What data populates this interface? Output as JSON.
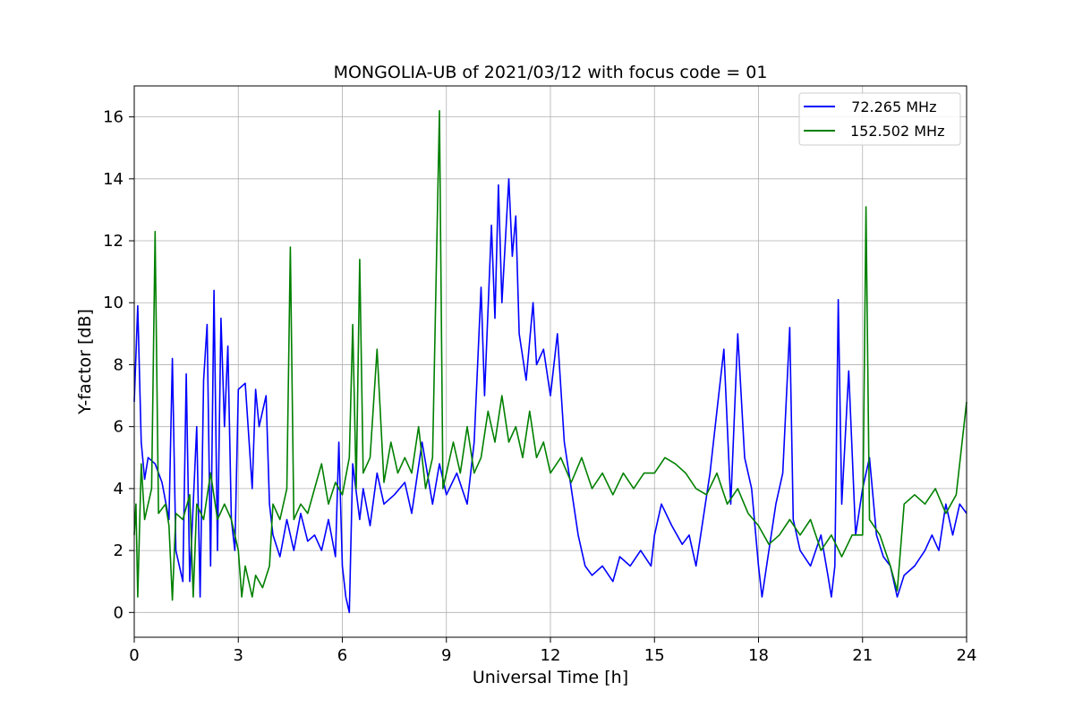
{
  "chart_data": {
    "type": "line",
    "title": "MONGOLIA-UB of 2021/03/12 with focus code = 01",
    "xlabel": "Universal Time [h]",
    "ylabel": "Y-factor [dB]",
    "xlim": [
      0,
      24
    ],
    "ylim": [
      -0.8,
      17
    ],
    "xticks": [
      0,
      3,
      6,
      9,
      12,
      15,
      18,
      21,
      24
    ],
    "yticks": [
      0,
      2,
      4,
      6,
      8,
      10,
      12,
      14,
      16
    ],
    "grid": true,
    "legend_position": "top-right",
    "series": [
      {
        "name": "72.265 MHz",
        "legend_label": "  72.265 MHz",
        "color": "#0000ff",
        "points": [
          [
            0.0,
            6.8
          ],
          [
            0.1,
            9.9
          ],
          [
            0.2,
            5.5
          ],
          [
            0.3,
            4.3
          ],
          [
            0.4,
            5.0
          ],
          [
            0.6,
            4.8
          ],
          [
            0.8,
            4.2
          ],
          [
            1.0,
            3.0
          ],
          [
            1.1,
            8.2
          ],
          [
            1.2,
            2.0
          ],
          [
            1.4,
            1.0
          ],
          [
            1.5,
            7.7
          ],
          [
            1.6,
            1.0
          ],
          [
            1.8,
            6.0
          ],
          [
            1.9,
            0.5
          ],
          [
            2.0,
            7.5
          ],
          [
            2.1,
            9.3
          ],
          [
            2.2,
            1.5
          ],
          [
            2.3,
            10.4
          ],
          [
            2.4,
            2.0
          ],
          [
            2.5,
            9.5
          ],
          [
            2.6,
            6.0
          ],
          [
            2.7,
            8.6
          ],
          [
            2.8,
            3.0
          ],
          [
            2.9,
            2.0
          ],
          [
            3.0,
            7.2
          ],
          [
            3.2,
            7.4
          ],
          [
            3.4,
            4.0
          ],
          [
            3.5,
            7.2
          ],
          [
            3.6,
            6.0
          ],
          [
            3.8,
            7.0
          ],
          [
            3.9,
            3.5
          ],
          [
            4.0,
            2.5
          ],
          [
            4.2,
            1.8
          ],
          [
            4.4,
            3.0
          ],
          [
            4.6,
            2.0
          ],
          [
            4.8,
            3.2
          ],
          [
            5.0,
            2.3
          ],
          [
            5.2,
            2.5
          ],
          [
            5.4,
            2.0
          ],
          [
            5.6,
            3.0
          ],
          [
            5.8,
            1.8
          ],
          [
            5.9,
            5.5
          ],
          [
            6.0,
            1.5
          ],
          [
            6.1,
            0.5
          ],
          [
            6.2,
            0.0
          ],
          [
            6.3,
            4.8
          ],
          [
            6.5,
            3.0
          ],
          [
            6.6,
            4.0
          ],
          [
            6.8,
            2.8
          ],
          [
            7.0,
            4.5
          ],
          [
            7.2,
            3.5
          ],
          [
            7.5,
            3.8
          ],
          [
            7.8,
            4.2
          ],
          [
            8.0,
            3.2
          ],
          [
            8.3,
            5.5
          ],
          [
            8.6,
            3.5
          ],
          [
            8.8,
            4.8
          ],
          [
            9.0,
            3.8
          ],
          [
            9.3,
            4.5
          ],
          [
            9.6,
            3.5
          ],
          [
            9.8,
            5.5
          ],
          [
            10.0,
            10.5
          ],
          [
            10.1,
            7.0
          ],
          [
            10.3,
            12.5
          ],
          [
            10.4,
            9.5
          ],
          [
            10.5,
            13.8
          ],
          [
            10.6,
            10.0
          ],
          [
            10.8,
            14.0
          ],
          [
            10.9,
            11.5
          ],
          [
            11.0,
            12.8
          ],
          [
            11.1,
            9.0
          ],
          [
            11.3,
            7.5
          ],
          [
            11.5,
            10.0
          ],
          [
            11.6,
            8.0
          ],
          [
            11.8,
            8.5
          ],
          [
            12.0,
            7.0
          ],
          [
            12.2,
            9.0
          ],
          [
            12.4,
            5.5
          ],
          [
            12.6,
            4.0
          ],
          [
            12.8,
            2.5
          ],
          [
            13.0,
            1.5
          ],
          [
            13.2,
            1.2
          ],
          [
            13.5,
            1.5
          ],
          [
            13.8,
            1.0
          ],
          [
            14.0,
            1.8
          ],
          [
            14.3,
            1.5
          ],
          [
            14.6,
            2.0
          ],
          [
            14.9,
            1.5
          ],
          [
            15.0,
            2.5
          ],
          [
            15.2,
            3.5
          ],
          [
            15.5,
            2.8
          ],
          [
            15.8,
            2.2
          ],
          [
            16.0,
            2.5
          ],
          [
            16.2,
            1.5
          ],
          [
            16.4,
            3.0
          ],
          [
            16.6,
            4.5
          ],
          [
            16.8,
            6.5
          ],
          [
            17.0,
            8.5
          ],
          [
            17.2,
            3.5
          ],
          [
            17.4,
            9.0
          ],
          [
            17.6,
            5.0
          ],
          [
            17.8,
            4.0
          ],
          [
            18.0,
            1.5
          ],
          [
            18.1,
            0.5
          ],
          [
            18.3,
            2.0
          ],
          [
            18.5,
            3.5
          ],
          [
            18.7,
            4.5
          ],
          [
            18.9,
            9.2
          ],
          [
            19.0,
            3.0
          ],
          [
            19.2,
            2.0
          ],
          [
            19.5,
            1.5
          ],
          [
            19.8,
            2.5
          ],
          [
            20.0,
            1.2
          ],
          [
            20.1,
            0.5
          ],
          [
            20.2,
            1.5
          ],
          [
            20.3,
            10.1
          ],
          [
            20.4,
            3.5
          ],
          [
            20.6,
            7.8
          ],
          [
            20.8,
            2.5
          ],
          [
            21.0,
            4.0
          ],
          [
            21.2,
            5.0
          ],
          [
            21.4,
            2.5
          ],
          [
            21.6,
            1.8
          ],
          [
            21.8,
            1.5
          ],
          [
            22.0,
            0.5
          ],
          [
            22.2,
            1.2
          ],
          [
            22.5,
            1.5
          ],
          [
            22.8,
            2.0
          ],
          [
            23.0,
            2.5
          ],
          [
            23.2,
            2.0
          ],
          [
            23.4,
            3.5
          ],
          [
            23.6,
            2.5
          ],
          [
            23.8,
            3.5
          ],
          [
            24.0,
            3.2
          ]
        ]
      },
      {
        "name": "152.502 MHz",
        "legend_label": "152.502 MHz",
        "color": "#008000",
        "points": [
          [
            0.0,
            2.5
          ],
          [
            0.05,
            3.5
          ],
          [
            0.1,
            0.5
          ],
          [
            0.2,
            4.8
          ],
          [
            0.3,
            3.0
          ],
          [
            0.5,
            4.0
          ],
          [
            0.6,
            12.3
          ],
          [
            0.7,
            3.2
          ],
          [
            0.9,
            3.5
          ],
          [
            1.0,
            2.8
          ],
          [
            1.1,
            0.4
          ],
          [
            1.2,
            3.2
          ],
          [
            1.4,
            3.0
          ],
          [
            1.6,
            3.8
          ],
          [
            1.7,
            0.5
          ],
          [
            1.8,
            3.5
          ],
          [
            2.0,
            3.0
          ],
          [
            2.2,
            4.5
          ],
          [
            2.4,
            3.0
          ],
          [
            2.6,
            3.5
          ],
          [
            2.8,
            3.0
          ],
          [
            3.0,
            2.0
          ],
          [
            3.1,
            0.5
          ],
          [
            3.2,
            1.5
          ],
          [
            3.4,
            0.5
          ],
          [
            3.5,
            1.2
          ],
          [
            3.7,
            0.8
          ],
          [
            3.9,
            1.5
          ],
          [
            4.0,
            3.5
          ],
          [
            4.2,
            3.0
          ],
          [
            4.4,
            4.0
          ],
          [
            4.5,
            11.8
          ],
          [
            4.6,
            3.0
          ],
          [
            4.8,
            3.5
          ],
          [
            5.0,
            3.2
          ],
          [
            5.2,
            4.0
          ],
          [
            5.4,
            4.8
          ],
          [
            5.6,
            3.5
          ],
          [
            5.8,
            4.2
          ],
          [
            6.0,
            3.8
          ],
          [
            6.2,
            5.0
          ],
          [
            6.3,
            9.3
          ],
          [
            6.4,
            4.0
          ],
          [
            6.5,
            11.4
          ],
          [
            6.6,
            4.5
          ],
          [
            6.8,
            5.0
          ],
          [
            7.0,
            8.5
          ],
          [
            7.2,
            4.2
          ],
          [
            7.4,
            5.5
          ],
          [
            7.6,
            4.5
          ],
          [
            7.8,
            5.0
          ],
          [
            8.0,
            4.5
          ],
          [
            8.2,
            6.0
          ],
          [
            8.4,
            4.0
          ],
          [
            8.6,
            5.0
          ],
          [
            8.8,
            16.2
          ],
          [
            8.9,
            4.0
          ],
          [
            9.0,
            4.5
          ],
          [
            9.2,
            5.5
          ],
          [
            9.4,
            4.5
          ],
          [
            9.6,
            6.0
          ],
          [
            9.8,
            4.5
          ],
          [
            10.0,
            5.0
          ],
          [
            10.2,
            6.5
          ],
          [
            10.4,
            5.5
          ],
          [
            10.6,
            7.0
          ],
          [
            10.8,
            5.5
          ],
          [
            11.0,
            6.0
          ],
          [
            11.2,
            5.0
          ],
          [
            11.4,
            6.5
          ],
          [
            11.6,
            5.0
          ],
          [
            11.8,
            5.5
          ],
          [
            12.0,
            4.5
          ],
          [
            12.3,
            5.0
          ],
          [
            12.6,
            4.2
          ],
          [
            12.9,
            5.0
          ],
          [
            13.2,
            4.0
          ],
          [
            13.5,
            4.5
          ],
          [
            13.8,
            3.8
          ],
          [
            14.1,
            4.5
          ],
          [
            14.4,
            4.0
          ],
          [
            14.7,
            4.5
          ],
          [
            15.0,
            4.5
          ],
          [
            15.3,
            5.0
          ],
          [
            15.6,
            4.8
          ],
          [
            15.9,
            4.5
          ],
          [
            16.2,
            4.0
          ],
          [
            16.5,
            3.8
          ],
          [
            16.8,
            4.5
          ],
          [
            17.1,
            3.5
          ],
          [
            17.4,
            4.0
          ],
          [
            17.7,
            3.2
          ],
          [
            18.0,
            2.8
          ],
          [
            18.3,
            2.2
          ],
          [
            18.6,
            2.5
          ],
          [
            18.9,
            3.0
          ],
          [
            19.2,
            2.5
          ],
          [
            19.5,
            3.0
          ],
          [
            19.8,
            2.0
          ],
          [
            20.1,
            2.5
          ],
          [
            20.4,
            1.8
          ],
          [
            20.7,
            2.5
          ],
          [
            21.0,
            2.5
          ],
          [
            21.1,
            13.1
          ],
          [
            21.2,
            3.0
          ],
          [
            21.5,
            2.5
          ],
          [
            21.8,
            1.5
          ],
          [
            22.0,
            0.7
          ],
          [
            22.2,
            3.5
          ],
          [
            22.5,
            3.8
          ],
          [
            22.8,
            3.5
          ],
          [
            23.1,
            4.0
          ],
          [
            23.4,
            3.2
          ],
          [
            23.7,
            3.8
          ],
          [
            24.0,
            6.8
          ]
        ]
      }
    ]
  }
}
